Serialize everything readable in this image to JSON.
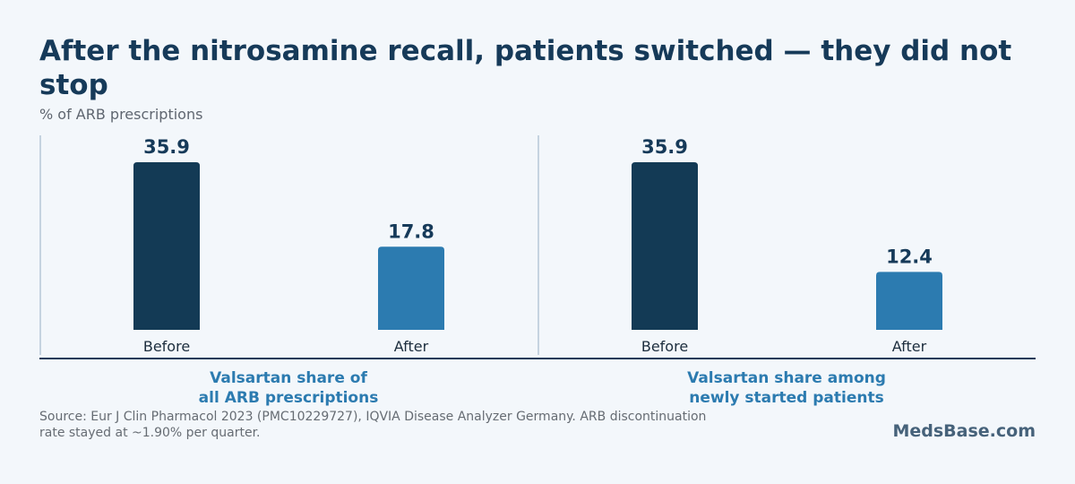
{
  "header": {
    "title": "After the nitrosamine recall, patients switched — they did not stop",
    "subtitle": "% of ARB prescriptions"
  },
  "footer": {
    "source_line1": "Source: Eur J Clin Pharmacol 2023 (PMC10229727), IQVIA Disease Analyzer Germany. ARB discontinuation",
    "source_line2": "rate stayed at ~1.90% per quarter.",
    "brand": "MedsBase.com"
  },
  "colors": {
    "before": "#133a55",
    "after": "#2c7bb0",
    "title": "#163a59",
    "panel_label": "#2c7bb0",
    "axis": "#163a59",
    "divider": "#c5d3e0"
  },
  "chart_data": [
    {
      "type": "bar",
      "categories": [
        "Before",
        "After"
      ],
      "values": [
        35.9,
        17.8
      ],
      "label_lines": [
        "Valsartan share of",
        "all ARB prescriptions"
      ],
      "ylim": [
        0,
        35.9
      ],
      "grid": false,
      "data_labels": true
    },
    {
      "type": "bar",
      "categories": [
        "Before",
        "After"
      ],
      "values": [
        35.9,
        12.4
      ],
      "label_lines": [
        "Valsartan share among",
        "newly started patients"
      ],
      "ylim": [
        0,
        35.9
      ],
      "grid": false,
      "data_labels": true
    }
  ]
}
